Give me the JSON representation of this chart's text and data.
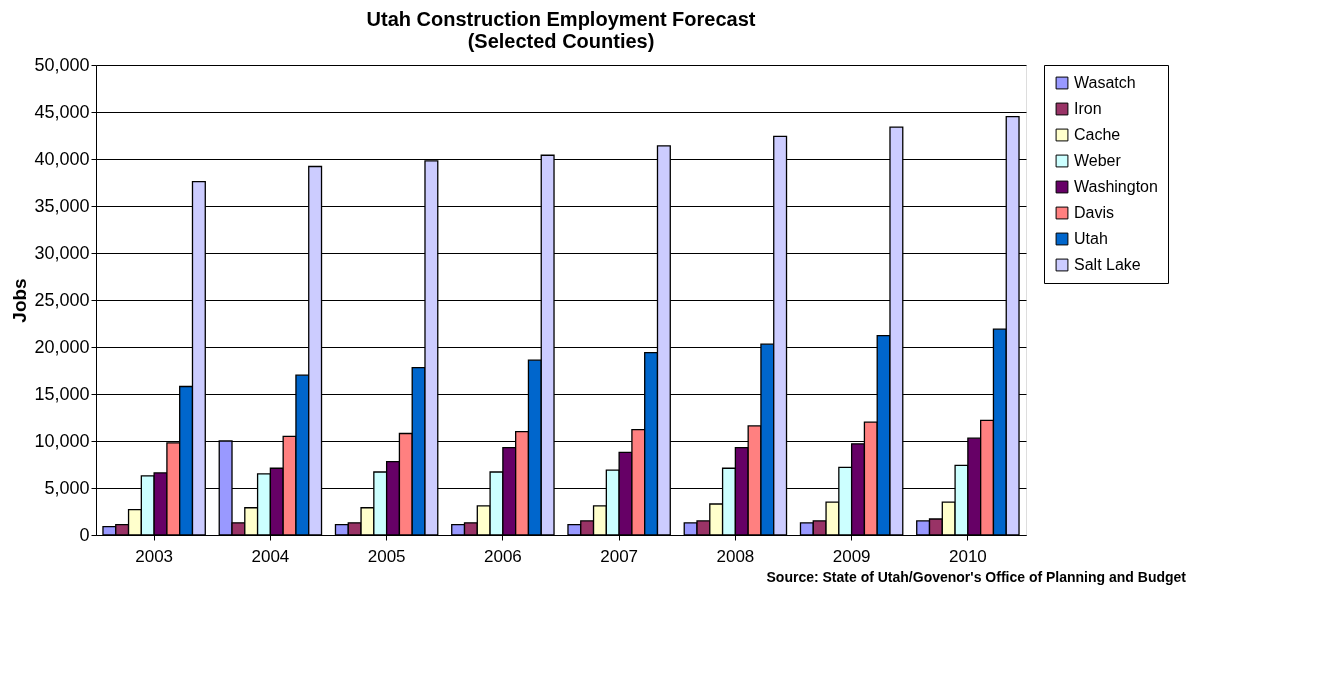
{
  "chart_data": {
    "type": "bar",
    "title": [
      "Utah Construction Employment Forecast",
      "(Selected Counties)"
    ],
    "ylabel": "Jobs",
    "categories": [
      "2003",
      "2004",
      "2005",
      "2006",
      "2007",
      "2008",
      "2009",
      "2010"
    ],
    "series": [
      {
        "name": "Wasatch",
        "color": "#9999ff",
        "values": [
          900,
          10000,
          1100,
          1100,
          1100,
          1300,
          1300,
          1500
        ]
      },
      {
        "name": "Iron",
        "color": "#993366",
        "values": [
          1100,
          1300,
          1300,
          1300,
          1500,
          1500,
          1500,
          1700
        ]
      },
      {
        "name": "Cache",
        "color": "#ffffcc",
        "values": [
          2700,
          2900,
          2900,
          3100,
          3100,
          3300,
          3500,
          3500
        ]
      },
      {
        "name": "Weber",
        "color": "#ccffff",
        "values": [
          6300,
          6500,
          6700,
          6700,
          6900,
          7100,
          7200,
          7400
        ]
      },
      {
        "name": "Washington",
        "color": "#660066",
        "values": [
          6600,
          7100,
          7800,
          9300,
          8800,
          9300,
          9700,
          10300
        ]
      },
      {
        "name": "Davis",
        "color": "#ff8080",
        "values": [
          9800,
          10500,
          10800,
          11000,
          11200,
          11600,
          12000,
          12200
        ]
      },
      {
        "name": "Utah",
        "color": "#0066cc",
        "values": [
          15800,
          17000,
          17800,
          18600,
          19400,
          20300,
          21200,
          21900
        ]
      },
      {
        "name": "Salt Lake",
        "color": "#ccccff",
        "values": [
          37600,
          39200,
          39800,
          40400,
          41400,
          42400,
          43400,
          44500
        ]
      }
    ],
    "ylim": [
      0,
      50000
    ],
    "yticks": [
      0,
      {
        "value": 5000,
        "label": "5,000"
      },
      {
        "value": 10000,
        "label": "10,000"
      },
      {
        "value": 15000,
        "label": "15,000"
      },
      {
        "value": 20000,
        "label": "20,000"
      },
      {
        "value": 25000,
        "label": "25,000"
      },
      {
        "value": 30000,
        "label": "30,000"
      },
      {
        "value": 35000,
        "label": "35,000"
      },
      {
        "value": 40000,
        "label": "40,000"
      },
      {
        "value": 45000,
        "label": "45,000"
      },
      {
        "value": 50000,
        "label": "50,000"
      }
    ],
    "grid": "y",
    "legend": "right",
    "annotations": [
      "Source: State of Utah/Govenor's Office of Planning and Budget"
    ]
  }
}
